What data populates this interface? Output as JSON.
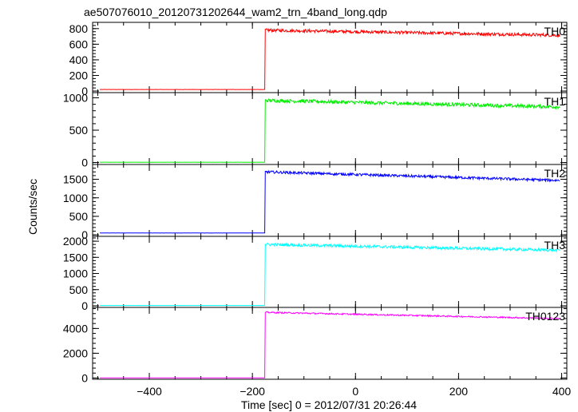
{
  "chart_data": {
    "type": "line",
    "title": "ae507076010_20120731202644_wam2_trn_4band_long.qdp",
    "xlabel": "Time [sec] 0 = 2012/07/31 20:26:44",
    "ylabel": "Counts/sec",
    "xlim": [
      -510,
      410
    ],
    "xticks": [
      -400,
      -200,
      0,
      200,
      400
    ],
    "x_tick_labels": [
      "−400",
      "−200",
      "0",
      "200",
      "400"
    ],
    "x_step": 1,
    "grid": false,
    "panels": [
      {
        "name": "TH0",
        "color": "#ff0000",
        "ylim": [
          -20,
          880
        ],
        "yticks": [
          0,
          200,
          400,
          600,
          800
        ],
        "y_tick_labels": [
          "0",
          "200",
          "400",
          "600",
          "800"
        ],
        "x_range": [
          -496,
          396
        ],
        "step_x": -175,
        "pre_level": 20,
        "post_start": 780,
        "post_end": 715,
        "noise": 40
      },
      {
        "name": "TH1",
        "color": "#00ee00",
        "ylim": [
          -30,
          1080
        ],
        "yticks": [
          0,
          500,
          1000
        ],
        "y_tick_labels": [
          "0",
          "500",
          "1000"
        ],
        "x_range": [
          -496,
          396
        ],
        "step_x": -175,
        "pre_level": 5,
        "post_start": 960,
        "post_end": 860,
        "noise": 55
      },
      {
        "name": "TH2",
        "color": "#0000ff",
        "ylim": [
          -40,
          1900
        ],
        "yticks": [
          0,
          500,
          1000,
          1500
        ],
        "y_tick_labels": [
          "0",
          "500",
          "1000",
          "1500"
        ],
        "x_range": [
          -496,
          396
        ],
        "step_x": -175,
        "pre_level": 50,
        "post_start": 1700,
        "post_end": 1470,
        "noise": 70
      },
      {
        "name": "TH3",
        "color": "#00ffff",
        "ylim": [
          -50,
          2150
        ],
        "yticks": [
          0,
          500,
          1000,
          1500,
          2000
        ],
        "y_tick_labels": [
          "0",
          "500",
          "1000",
          "1500",
          "2000"
        ],
        "x_range": [
          -496,
          396
        ],
        "step_x": -175,
        "pre_level": 10,
        "post_start": 1900,
        "post_end": 1720,
        "noise": 90
      },
      {
        "name": "TH0123",
        "color": "#ff00ff",
        "ylim": [
          -100,
          5700
        ],
        "yticks": [
          0,
          2000,
          4000
        ],
        "y_tick_labels": [
          "0",
          "2000",
          "4000"
        ],
        "x_range": [
          -496,
          396
        ],
        "step_x": -175,
        "pre_level": 10,
        "post_start": 5300,
        "post_end": 4800,
        "noise": 110
      }
    ]
  }
}
